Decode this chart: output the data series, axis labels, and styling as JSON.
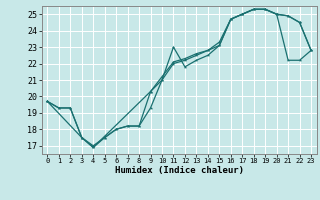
{
  "xlabel": "Humidex (Indice chaleur)",
  "xlim": [
    -0.5,
    23.5
  ],
  "ylim": [
    16.5,
    25.5
  ],
  "xticks": [
    0,
    1,
    2,
    3,
    4,
    5,
    6,
    7,
    8,
    9,
    10,
    11,
    12,
    13,
    14,
    15,
    16,
    17,
    18,
    19,
    20,
    21,
    22,
    23
  ],
  "yticks": [
    17,
    18,
    19,
    20,
    21,
    22,
    23,
    24,
    25
  ],
  "bg_color": "#c8e8e8",
  "grid_color": "#ffffff",
  "line_color": "#1a7070",
  "line1_x": [
    0,
    1,
    2,
    3,
    4,
    5,
    6,
    7,
    8,
    9,
    10,
    11,
    12,
    13,
    14,
    15,
    16,
    17,
    18,
    19,
    20,
    21,
    22,
    23
  ],
  "line1_y": [
    19.7,
    19.3,
    19.3,
    17.5,
    17.0,
    17.5,
    18.0,
    18.2,
    18.2,
    19.3,
    21.0,
    23.0,
    21.8,
    22.2,
    22.5,
    23.1,
    24.7,
    25.0,
    25.3,
    25.3,
    25.0,
    24.9,
    24.5,
    22.8
  ],
  "line2_x": [
    0,
    1,
    2,
    3,
    4,
    5,
    6,
    7,
    8,
    9,
    10,
    11,
    12,
    13,
    14,
    15,
    16,
    17,
    18,
    19,
    20,
    21,
    22,
    23
  ],
  "line2_y": [
    19.7,
    19.3,
    19.3,
    17.5,
    16.9,
    17.5,
    18.0,
    18.2,
    18.2,
    20.3,
    21.0,
    22.0,
    22.2,
    22.5,
    22.8,
    23.3,
    24.7,
    25.0,
    25.3,
    25.3,
    25.0,
    24.9,
    24.5,
    22.8
  ],
  "line3_x": [
    0,
    3,
    4,
    9,
    10,
    11,
    12,
    13,
    14,
    15,
    16,
    17,
    18,
    19,
    20,
    21,
    22,
    23
  ],
  "line3_y": [
    19.7,
    17.5,
    16.9,
    20.3,
    21.2,
    22.1,
    22.3,
    22.6,
    22.8,
    23.1,
    24.7,
    25.0,
    25.3,
    25.3,
    25.0,
    22.2,
    22.2,
    22.8
  ]
}
